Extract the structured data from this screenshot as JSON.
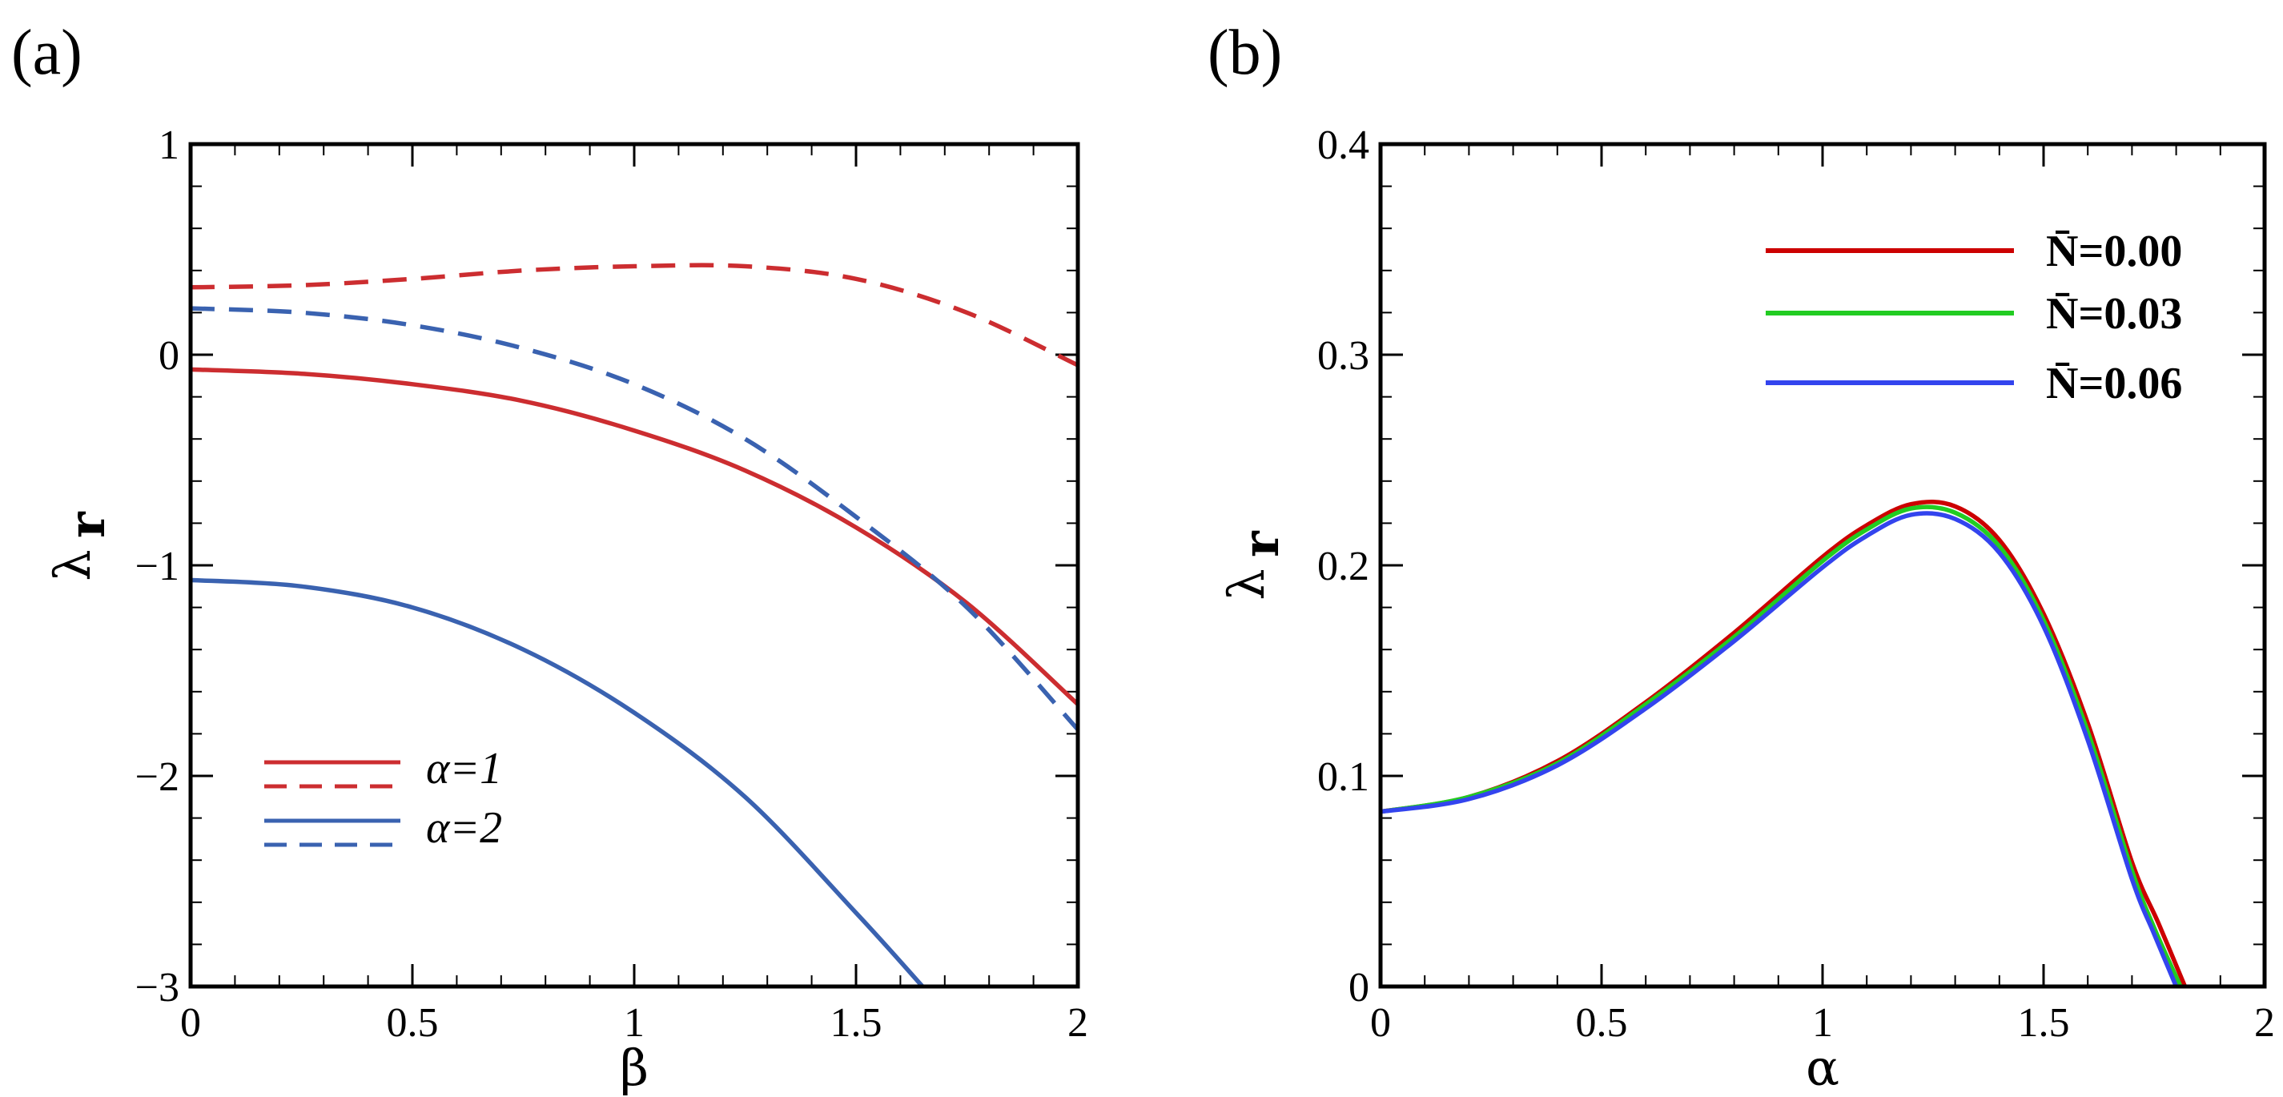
{
  "chart_data": [
    {
      "type": "line",
      "panel_label": "(a)",
      "xlabel": "β",
      "ylabel": "λ",
      "ylabel_sub": "r",
      "xlim": [
        0,
        2
      ],
      "ylim": [
        -3,
        1
      ],
      "xticks": [
        0,
        0.5,
        1,
        1.5,
        2
      ],
      "xtick_labels": [
        "0",
        "0.5",
        "1",
        "1.5",
        "2"
      ],
      "yticks": [
        -3,
        -2,
        -1,
        0,
        1
      ],
      "ytick_labels": [
        "−3",
        "−2",
        "−1",
        "0",
        "1"
      ],
      "legend": [
        {
          "label": "α=1",
          "color": "#cc2d30"
        },
        {
          "label": "α=2",
          "color": "#3a62b0"
        }
      ],
      "series": [
        {
          "name": "α=1 solid",
          "color": "#cc2d30",
          "dash": "solid",
          "x": [
            0,
            0.25,
            0.5,
            0.75,
            1.0,
            1.25,
            1.5,
            1.75,
            2.0
          ],
          "y": [
            -0.07,
            -0.09,
            -0.14,
            -0.22,
            -0.36,
            -0.55,
            -0.82,
            -1.18,
            -1.66
          ]
        },
        {
          "name": "α=1 dashed",
          "color": "#cc2d30",
          "dash": "dashed",
          "x": [
            0,
            0.25,
            0.5,
            0.75,
            1.0,
            1.25,
            1.5,
            1.75,
            2.0
          ],
          "y": [
            0.32,
            0.33,
            0.36,
            0.4,
            0.42,
            0.42,
            0.36,
            0.2,
            -0.05
          ]
        },
        {
          "name": "α=2 solid",
          "color": "#3a62b0",
          "dash": "solid",
          "x": [
            0,
            0.25,
            0.5,
            0.75,
            1.0,
            1.25,
            1.5,
            1.65
          ],
          "y": [
            -1.07,
            -1.1,
            -1.2,
            -1.4,
            -1.7,
            -2.1,
            -2.65,
            -3.0
          ]
        },
        {
          "name": "α=2 dashed",
          "color": "#3a62b0",
          "dash": "dashed",
          "x": [
            0,
            0.25,
            0.5,
            0.75,
            1.0,
            1.25,
            1.5,
            1.75,
            2.0
          ],
          "y": [
            0.22,
            0.2,
            0.14,
            0.03,
            -0.14,
            -0.4,
            -0.77,
            -1.2,
            -1.78
          ]
        }
      ]
    },
    {
      "type": "line",
      "panel_label": "(b)",
      "xlabel": "α",
      "ylabel": "λ",
      "ylabel_sub": "r",
      "xlim": [
        0,
        2
      ],
      "ylim": [
        0,
        0.4
      ],
      "xticks": [
        0,
        0.5,
        1,
        1.5,
        2
      ],
      "xtick_labels": [
        "0",
        "0.5",
        "1",
        "1.5",
        "2"
      ],
      "yticks": [
        0,
        0.1,
        0.2,
        0.3,
        0.4
      ],
      "ytick_labels": [
        "0",
        "0.1",
        "0.2",
        "0.3",
        "0.4"
      ],
      "legend": [
        {
          "label": "N̄=0.00",
          "color": "#cc0000"
        },
        {
          "label": "N̄=0.03",
          "color": "#22cc22"
        },
        {
          "label": "N̄=0.06",
          "color": "#3344ee"
        }
      ],
      "series": [
        {
          "name": "N̄=0.00",
          "color": "#cc0000",
          "x": [
            0,
            0.2,
            0.4,
            0.6,
            0.8,
            1.0,
            1.1,
            1.2,
            1.3,
            1.4,
            1.5,
            1.6,
            1.7,
            1.76,
            1.82
          ],
          "y": [
            0.083,
            0.09,
            0.107,
            0.135,
            0.168,
            0.204,
            0.219,
            0.229,
            0.228,
            0.212,
            0.177,
            0.125,
            0.059,
            0.03,
            0.0
          ]
        },
        {
          "name": "N̄=0.03",
          "color": "#22cc22",
          "x": [
            0,
            0.2,
            0.4,
            0.6,
            0.8,
            1.0,
            1.1,
            1.2,
            1.3,
            1.4,
            1.5,
            1.6,
            1.7,
            1.75,
            1.81
          ],
          "y": [
            0.083,
            0.09,
            0.106,
            0.134,
            0.166,
            0.202,
            0.217,
            0.227,
            0.225,
            0.209,
            0.174,
            0.121,
            0.055,
            0.028,
            0.0
          ]
        },
        {
          "name": "N̄=0.06",
          "color": "#3344ee",
          "x": [
            0,
            0.2,
            0.4,
            0.6,
            0.8,
            1.0,
            1.1,
            1.2,
            1.3,
            1.4,
            1.5,
            1.6,
            1.7,
            1.75,
            1.8
          ],
          "y": [
            0.083,
            0.089,
            0.105,
            0.132,
            0.164,
            0.199,
            0.214,
            0.224,
            0.222,
            0.206,
            0.171,
            0.117,
            0.051,
            0.025,
            0.0
          ]
        }
      ]
    }
  ]
}
